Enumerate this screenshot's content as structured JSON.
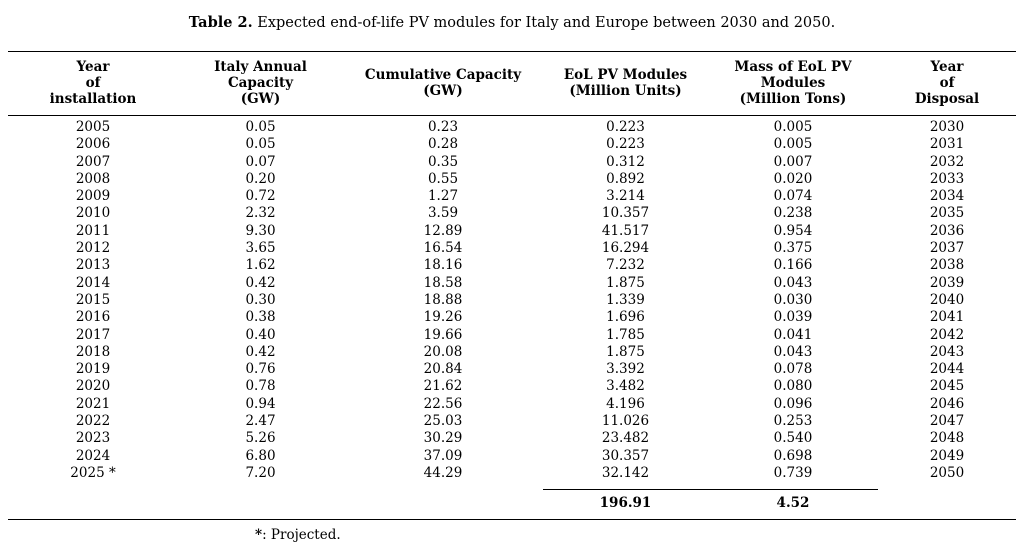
{
  "caption": {
    "label": "Table 2.",
    "text": " Expected end-of-life PV modules for Italy and Europe between 2030 and 2050."
  },
  "table": {
    "headers": [
      "Year\nof\ninstallation",
      "Italy Annual\nCapacity\n(GW)",
      "Cumulative Capacity\n(GW)",
      "EoL PV Modules\n(Million Units)",
      "Mass of EoL PV\nModules\n(Million Tons)",
      "Year\nof\nDisposal"
    ],
    "rows": [
      [
        "2005",
        "0.05",
        "0.23",
        "0.223",
        "0.005",
        "2030"
      ],
      [
        "2006",
        "0.05",
        "0.28",
        "0.223",
        "0.005",
        "2031"
      ],
      [
        "2007",
        "0.07",
        "0.35",
        "0.312",
        "0.007",
        "2032"
      ],
      [
        "2008",
        "0.20",
        "0.55",
        "0.892",
        "0.020",
        "2033"
      ],
      [
        "2009",
        "0.72",
        "1.27",
        "3.214",
        "0.074",
        "2034"
      ],
      [
        "2010",
        "2.32",
        "3.59",
        "10.357",
        "0.238",
        "2035"
      ],
      [
        "2011",
        "9.30",
        "12.89",
        "41.517",
        "0.954",
        "2036"
      ],
      [
        "2012",
        "3.65",
        "16.54",
        "16.294",
        "0.375",
        "2037"
      ],
      [
        "2013",
        "1.62",
        "18.16",
        "7.232",
        "0.166",
        "2038"
      ],
      [
        "2014",
        "0.42",
        "18.58",
        "1.875",
        "0.043",
        "2039"
      ],
      [
        "2015",
        "0.30",
        "18.88",
        "1.339",
        "0.030",
        "2040"
      ],
      [
        "2016",
        "0.38",
        "19.26",
        "1.696",
        "0.039",
        "2041"
      ],
      [
        "2017",
        "0.40",
        "19.66",
        "1.785",
        "0.041",
        "2042"
      ],
      [
        "2018",
        "0.42",
        "20.08",
        "1.875",
        "0.043",
        "2043"
      ],
      [
        "2019",
        "0.76",
        "20.84",
        "3.392",
        "0.078",
        "2044"
      ],
      [
        "2020",
        "0.78",
        "21.62",
        "3.482",
        "0.080",
        "2045"
      ],
      [
        "2021",
        "0.94",
        "22.56",
        "4.196",
        "0.096",
        "2046"
      ],
      [
        "2022",
        "2.47",
        "25.03",
        "11.026",
        "0.253",
        "2047"
      ],
      [
        "2023",
        "5.26",
        "30.29",
        "23.482",
        "0.540",
        "2048"
      ],
      [
        "2024",
        "6.80",
        "37.09",
        "30.357",
        "0.698",
        "2049"
      ],
      [
        "2025 *",
        "7.20",
        "44.29",
        "32.142",
        "0.739",
        "2050"
      ]
    ],
    "totals": {
      "eol_modules": "196.91",
      "mass": "4.52"
    }
  },
  "footnote": {
    "marker": "*",
    "text": ": Projected."
  }
}
